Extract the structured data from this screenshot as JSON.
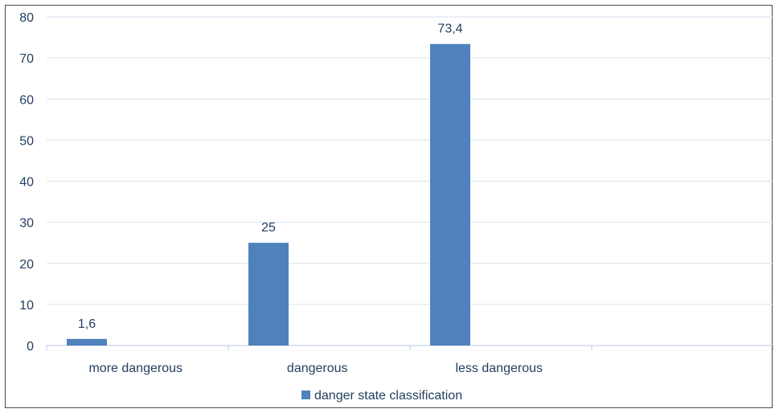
{
  "chart_data": {
    "type": "bar",
    "categories": [
      "more dangerous",
      "dangerous",
      "less dangerous",
      ""
    ],
    "series": [
      {
        "name": "danger state classification",
        "values": [
          1.6,
          25,
          73.4,
          null
        ],
        "labels": [
          "1,6",
          "25",
          "73,4",
          ""
        ]
      }
    ],
    "yticks": [
      0,
      10,
      20,
      30,
      40,
      50,
      60,
      70,
      80
    ],
    "ylim": [
      0,
      80
    ],
    "grid": true,
    "legend": "bottom",
    "colors": {
      "bar": "#4f81bd",
      "grid": "#d6e3f0",
      "text": "#243f60",
      "axis": "#b9c9dd"
    }
  }
}
